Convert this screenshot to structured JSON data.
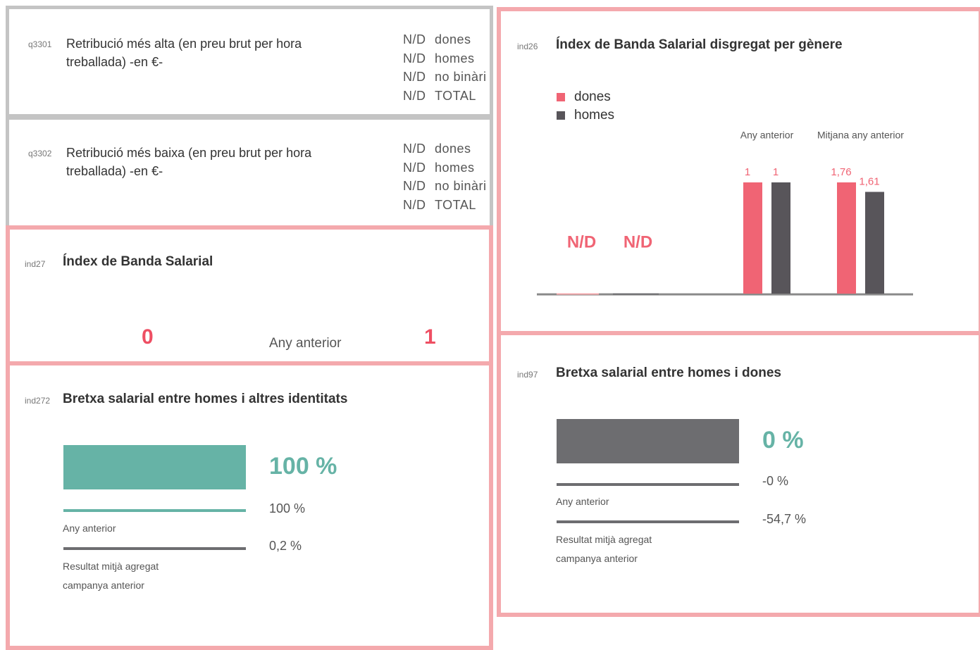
{
  "q3301": {
    "code": "q3301",
    "title": "Retribució  més alta (en preu brut per hora treballada) -en €-",
    "rows": [
      [
        "N/D",
        "dones"
      ],
      [
        "N/D",
        "homes"
      ],
      [
        "N/D",
        "no binàri"
      ],
      [
        "N/D",
        "TOTAL"
      ]
    ]
  },
  "q3302": {
    "code": "q3302",
    "title": "Retribució més baixa (en preu brut per hora treballada) -en €-",
    "rows": [
      [
        "N/D",
        "dones"
      ],
      [
        "N/D",
        "homes"
      ],
      [
        "N/D",
        "no binàri"
      ],
      [
        "N/D",
        "TOTAL"
      ]
    ]
  },
  "ind27": {
    "code": "ind27",
    "title": "Índex de Banda Salarial",
    "value": 0,
    "previous_label": "Any anterior",
    "previous_value": 1
  },
  "ind272": {
    "code": "ind272",
    "title": "Bretxa salarial entre homes i altres identitats",
    "value": "100 %",
    "previous": "100 %",
    "previous_label": "Any anterior",
    "average": "0,2 %",
    "average_label": "Resultat mitjà agregat campanya anterior"
  },
  "ind97": {
    "code": "ind97",
    "title": "Bretxa salarial entre homes i dones",
    "value": "0 %",
    "previous": "-0 %",
    "previous_label": "Any anterior",
    "average": "-54,7 %",
    "average_label": "Resultat mitjà agregat campanya anterior"
  },
  "ind26": {
    "code": "ind26",
    "title": "Índex de Banda Salarial disgregat per gènere",
    "chart_data": {
      "type": "bar",
      "categories": [
        null,
        "Any anterior",
        "Mitjana any anterior"
      ],
      "label_color": "#f06474",
      "series": [
        {
          "name": "dones",
          "color": "#f06474",
          "values": [
            null,
            1,
            1.76
          ],
          "value_labels": [
            "N/D",
            "1",
            "1,76"
          ]
        },
        {
          "name": "homes",
          "color": "#58555a",
          "values": [
            null,
            1,
            1.61
          ],
          "value_labels": [
            "N/D",
            "1",
            "1,61"
          ]
        }
      ]
    }
  }
}
